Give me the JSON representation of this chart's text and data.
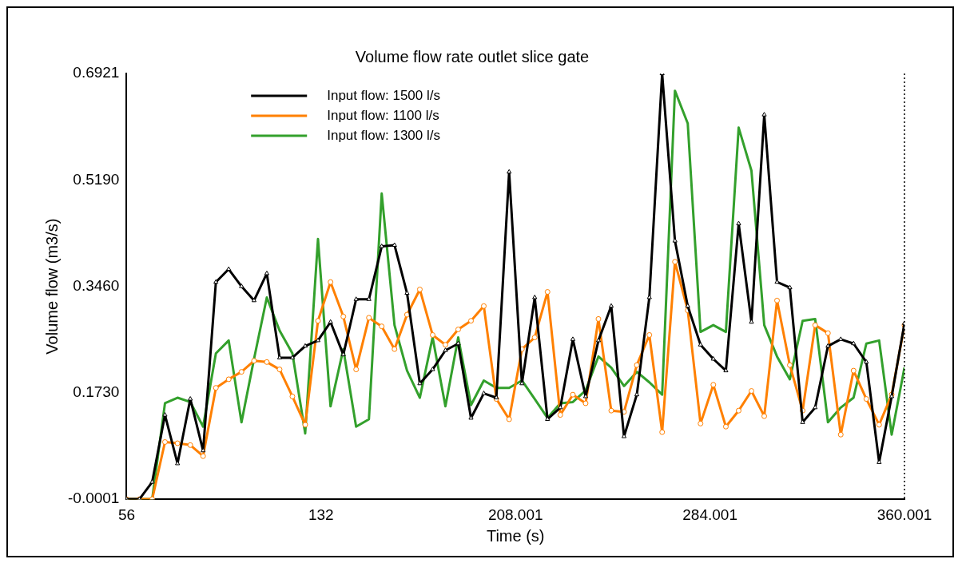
{
  "chart_data": {
    "type": "line",
    "title": "Volume flow rate outlet slice gate",
    "xlabel": "Time (s)",
    "ylabel": "Volume flow (m3/s)",
    "x": [
      56,
      61.0,
      66.0,
      71.0,
      75.9,
      80.9,
      85.9,
      90.9,
      95.9,
      100.9,
      105.8,
      110.8,
      115.8,
      120.8,
      125.8,
      130.8,
      135.7,
      140.7,
      145.7,
      150.7,
      155.7,
      160.7,
      165.6,
      170.6,
      175.6,
      180.6,
      185.6,
      190.6,
      195.6,
      200.5,
      205.5,
      210.5,
      215.5,
      220.5,
      225.5,
      230.4,
      235.4,
      240.4,
      245.4,
      250.4,
      255.4,
      260.3,
      265.3,
      270.3,
      275.3,
      280.3,
      285.3,
      290.2,
      295.2,
      300.2,
      305.2,
      310.2,
      315.2,
      320.2,
      325.1,
      330.1,
      335.1,
      340.1,
      345.1,
      350.1,
      355.0,
      360.0
    ],
    "series": [
      {
        "name": "Input flow: 1500 l/s",
        "color": "#000000",
        "marker": "triangle",
        "values": [
          0,
          0,
          0.028,
          0.137,
          0.058,
          0.163,
          0.079,
          0.353,
          0.374,
          0.346,
          0.323,
          0.367,
          0.23,
          0.23,
          0.249,
          0.258,
          0.288,
          0.235,
          0.325,
          0.325,
          0.411,
          0.413,
          0.335,
          0.188,
          0.211,
          0.242,
          0.253,
          0.132,
          0.172,
          0.165,
          0.532,
          0.188,
          0.328,
          0.13,
          0.149,
          0.26,
          0.167,
          0.258,
          0.314,
          0.102,
          0.17,
          0.328,
          0.692,
          0.42,
          0.314,
          0.251,
          0.228,
          0.209,
          0.448,
          0.288,
          0.625,
          0.353,
          0.344,
          0.125,
          0.149,
          0.249,
          0.26,
          0.253,
          0.223,
          0.06,
          0.167,
          0.286
        ]
      },
      {
        "name": "Input flow: 1100 l/s",
        "color": "#ff8000",
        "marker": "circle",
        "values": [
          0,
          0,
          0,
          0.093,
          0.091,
          0.088,
          0.07,
          0.181,
          0.195,
          0.207,
          0.225,
          0.223,
          0.211,
          0.167,
          0.121,
          0.29,
          0.353,
          0.297,
          0.211,
          0.295,
          0.281,
          0.244,
          0.3,
          0.341,
          0.267,
          0.251,
          0.276,
          0.29,
          0.314,
          0.163,
          0.13,
          0.244,
          0.263,
          0.337,
          0.137,
          0.17,
          0.156,
          0.293,
          0.144,
          0.142,
          0.218,
          0.267,
          0.109,
          0.386,
          0.307,
          0.123,
          0.186,
          0.118,
          0.144,
          0.176,
          0.135,
          0.323,
          0.218,
          0.144,
          0.283,
          0.27,
          0.105,
          0.209,
          0.163,
          0.121,
          0.17,
          0.283
        ]
      },
      {
        "name": "Input flow: 1300 l/s",
        "color": "#33a02c",
        "marker": "none",
        "values": [
          0,
          0,
          0,
          0.156,
          0.165,
          0.158,
          0.118,
          0.237,
          0.258,
          0.125,
          0.228,
          0.328,
          0.274,
          0.237,
          0.107,
          0.423,
          0.151,
          0.244,
          0.118,
          0.13,
          0.497,
          0.283,
          0.209,
          0.165,
          0.263,
          0.151,
          0.263,
          0.153,
          0.193,
          0.181,
          0.181,
          0.193,
          0.163,
          0.132,
          0.156,
          0.158,
          0.177,
          0.232,
          0.214,
          0.184,
          0.207,
          0.19,
          0.17,
          0.664,
          0.611,
          0.272,
          0.283,
          0.272,
          0.604,
          0.534,
          0.283,
          0.232,
          0.195,
          0.29,
          0.293,
          0.125,
          0.149,
          0.165,
          0.253,
          0.258,
          0.105,
          0.214
        ]
      }
    ],
    "xlim": [
      56,
      360.001
    ],
    "xticks": [
      56,
      132,
      {
        "value": 208.001,
        "label": "208.001"
      },
      {
        "value": 284.001,
        "label": "284.001"
      },
      {
        "value": 360.001,
        "label": "360.001"
      }
    ],
    "ylim": [
      -0.0001,
      0.6921
    ],
    "yticks": [
      -0.0001,
      {
        "value": 0.173,
        "label": "0.1730"
      },
      {
        "value": 0.346,
        "label": "0.3460"
      },
      {
        "value": 0.519,
        "label": "0.5190"
      },
      0.6921
    ],
    "ref_lines": [
      {
        "axis": "x",
        "value": 360.001,
        "color": "#000000",
        "line_style": "dotted"
      }
    ],
    "grid": false,
    "legend": "top left"
  }
}
